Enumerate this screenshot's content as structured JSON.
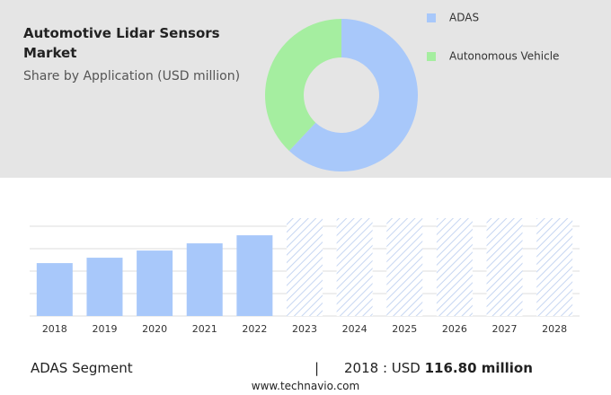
{
  "chart_data": [
    {
      "type": "donut",
      "title": "Automotive Lidar Sensors Market",
      "subtitle": "Share by Application (USD million)",
      "categories": [
        "ADAS",
        "Autonomous Vehicle"
      ],
      "values": [
        62,
        38
      ],
      "colors": [
        "#a8c8fa",
        "#a5eea0"
      ]
    },
    {
      "type": "bar",
      "categories": [
        "2018",
        "2019",
        "2020",
        "2021",
        "2022",
        "2023",
        "2024",
        "2025",
        "2026",
        "2027",
        "2028"
      ],
      "values": [
        116.8,
        128.7,
        144.5,
        160.4,
        178.2,
        null,
        null,
        null,
        null,
        null,
        null
      ],
      "color": "#a8c8fa",
      "ylim": [
        0,
        220
      ],
      "grid": true
    }
  ],
  "footer": {
    "segment": "ADAS Segment",
    "currency": "USD",
    "amount": "116.80 million",
    "website": "www.technavio.com"
  }
}
